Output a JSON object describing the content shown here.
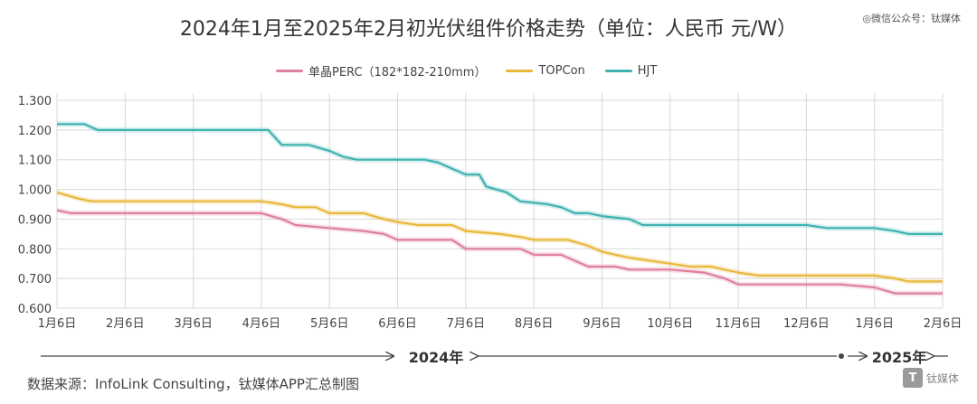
{
  "title": "2024年1月至2025年2月初光伏组件价格走势（单位：人民币 元/W）",
  "watermark": "◎微信公众号：钛媒体",
  "source": "数据来源：InfoLink Consulting，钛媒体APP汇总制图",
  "logo": {
    "icon": "T",
    "text": "钛媒体"
  },
  "timeline": {
    "year1": "2024年",
    "year2": "2025年"
  },
  "colors": {
    "perc": "#e07fa0",
    "topcon": "#e8b83a",
    "hjt": "#3fb3b0",
    "grid": "#d8d8d8"
  },
  "chart_data": {
    "type": "line",
    "title": "2024年1月至2025年2月初光伏组件价格走势（单位：人民币 元/W）",
    "x_categories": [
      "1月6日",
      "2月6日",
      "3月6日",
      "4月6日",
      "5月6日",
      "6月6日",
      "7月6日",
      "8月6日",
      "9月6日",
      "10月6日",
      "11月6日",
      "12月6日",
      "1月6日",
      "2月6日"
    ],
    "y_ticks": [
      "0.600",
      "0.700",
      "0.800",
      "0.900",
      "1.000",
      "1.100",
      "1.200",
      "1.300"
    ],
    "ylim": [
      0.6,
      1.3
    ],
    "grid": true,
    "legend_position": "top",
    "series": [
      {
        "name": "单晶PERC（182*182-210mm）",
        "points": [
          [
            0,
            0.93
          ],
          [
            0.2,
            0.92
          ],
          [
            1,
            0.92
          ],
          [
            2,
            0.92
          ],
          [
            3,
            0.92
          ],
          [
            3.3,
            0.9
          ],
          [
            3.5,
            0.88
          ],
          [
            4,
            0.87
          ],
          [
            4.5,
            0.86
          ],
          [
            4.8,
            0.85
          ],
          [
            5,
            0.83
          ],
          [
            5.5,
            0.83
          ],
          [
            5.8,
            0.83
          ],
          [
            6,
            0.8
          ],
          [
            6.5,
            0.8
          ],
          [
            6.8,
            0.8
          ],
          [
            7,
            0.78
          ],
          [
            7.4,
            0.78
          ],
          [
            7.6,
            0.76
          ],
          [
            7.8,
            0.74
          ],
          [
            8.2,
            0.74
          ],
          [
            8.4,
            0.73
          ],
          [
            9,
            0.73
          ],
          [
            9.5,
            0.72
          ],
          [
            9.8,
            0.7
          ],
          [
            10,
            0.68
          ],
          [
            11,
            0.68
          ],
          [
            11.5,
            0.68
          ],
          [
            12,
            0.67
          ],
          [
            12.3,
            0.65
          ],
          [
            13,
            0.65
          ]
        ]
      },
      {
        "name": "TOPCon",
        "points": [
          [
            0,
            0.99
          ],
          [
            0.3,
            0.97
          ],
          [
            0.5,
            0.96
          ],
          [
            1,
            0.96
          ],
          [
            2,
            0.96
          ],
          [
            3,
            0.96
          ],
          [
            3.3,
            0.95
          ],
          [
            3.5,
            0.94
          ],
          [
            3.8,
            0.94
          ],
          [
            4,
            0.92
          ],
          [
            4.5,
            0.92
          ],
          [
            4.8,
            0.9
          ],
          [
            5,
            0.89
          ],
          [
            5.3,
            0.88
          ],
          [
            5.8,
            0.88
          ],
          [
            6,
            0.86
          ],
          [
            6.5,
            0.85
          ],
          [
            6.8,
            0.84
          ],
          [
            7,
            0.83
          ],
          [
            7.5,
            0.83
          ],
          [
            7.8,
            0.81
          ],
          [
            8,
            0.79
          ],
          [
            8.2,
            0.78
          ],
          [
            8.4,
            0.77
          ],
          [
            8.7,
            0.76
          ],
          [
            9,
            0.75
          ],
          [
            9.3,
            0.74
          ],
          [
            9.6,
            0.74
          ],
          [
            9.8,
            0.73
          ],
          [
            10,
            0.72
          ],
          [
            10.3,
            0.71
          ],
          [
            11,
            0.71
          ],
          [
            12,
            0.71
          ],
          [
            12.3,
            0.7
          ],
          [
            12.5,
            0.69
          ],
          [
            13,
            0.69
          ]
        ]
      },
      {
        "name": "HJT",
        "points": [
          [
            0,
            1.22
          ],
          [
            0.4,
            1.22
          ],
          [
            0.6,
            1.2
          ],
          [
            1,
            1.2
          ],
          [
            2,
            1.2
          ],
          [
            3,
            1.2
          ],
          [
            3.1,
            1.2
          ],
          [
            3.3,
            1.15
          ],
          [
            3.7,
            1.15
          ],
          [
            4,
            1.13
          ],
          [
            4.2,
            1.11
          ],
          [
            4.4,
            1.1
          ],
          [
            5,
            1.1
          ],
          [
            5.4,
            1.1
          ],
          [
            5.6,
            1.09
          ],
          [
            5.8,
            1.07
          ],
          [
            6,
            1.05
          ],
          [
            6.2,
            1.05
          ],
          [
            6.3,
            1.01
          ],
          [
            6.6,
            0.99
          ],
          [
            6.8,
            0.96
          ],
          [
            7.2,
            0.95
          ],
          [
            7.4,
            0.94
          ],
          [
            7.6,
            0.92
          ],
          [
            7.8,
            0.92
          ],
          [
            8,
            0.91
          ],
          [
            8.4,
            0.9
          ],
          [
            8.6,
            0.88
          ],
          [
            9,
            0.88
          ],
          [
            10,
            0.88
          ],
          [
            11,
            0.88
          ],
          [
            11.3,
            0.87
          ],
          [
            12,
            0.87
          ],
          [
            12.3,
            0.86
          ],
          [
            12.5,
            0.85
          ],
          [
            13,
            0.85
          ]
        ]
      }
    ]
  }
}
